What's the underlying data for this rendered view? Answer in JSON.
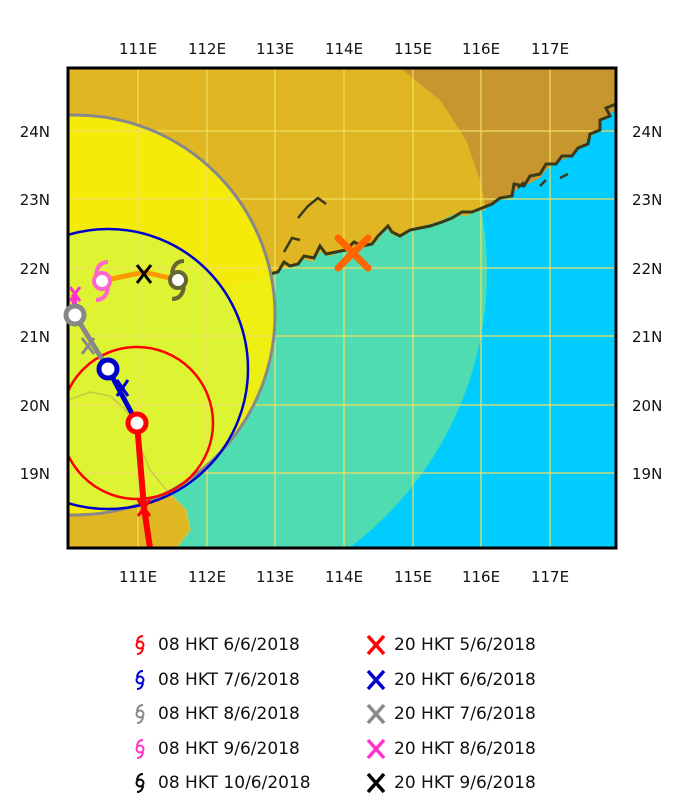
{
  "map": {
    "lon_ticks": [
      "111E",
      "112E",
      "113E",
      "114E",
      "115E",
      "116E",
      "117E"
    ],
    "lat_ticks": [
      "24N",
      "23N",
      "22N",
      "21N",
      "20N",
      "19N"
    ],
    "colors": {
      "land": "#c8962e",
      "land_in_circle": "#e6bd28",
      "sea": "#00ccff",
      "sea_outer_circle": "#4fdcb0",
      "inner_zone": "#f5ee0a",
      "core_zone": "#d9f43a",
      "grid": "#f0e060",
      "coast": "#3a3a1a"
    },
    "track_points": [
      {
        "time": "08 HKT 6/6/2018",
        "color": "#ff0000",
        "icon": "typhoon-symbol"
      },
      {
        "time": "08 HKT 7/6/2018",
        "color": "#0000cc",
        "icon": "typhoon-symbol"
      },
      {
        "time": "08 HKT 8/6/2018",
        "color": "#888888",
        "icon": "typhoon-symbol"
      },
      {
        "time": "08 HKT 9/6/2018",
        "color": "#ff33cc",
        "icon": "typhoon-symbol"
      },
      {
        "time": "08 HKT 10/6/2018",
        "color": "#000000",
        "icon": "typhoon-symbol"
      }
    ],
    "forecast_points": [
      {
        "time": "20 HKT 5/6/2018",
        "color": "#ff0000",
        "icon": "x-mark"
      },
      {
        "time": "20 HKT 6/6/2018",
        "color": "#0000cc",
        "icon": "x-mark"
      },
      {
        "time": "20 HKT 7/6/2018",
        "color": "#888888",
        "icon": "x-mark"
      },
      {
        "time": "20 HKT 8/6/2018",
        "color": "#ff33cc",
        "icon": "x-mark"
      },
      {
        "time": "20 HKT 9/6/2018",
        "color": "#000000",
        "icon": "x-mark"
      }
    ],
    "hong_kong_marker": {
      "color": "#ff6600",
      "icon": "x-mark"
    }
  }
}
